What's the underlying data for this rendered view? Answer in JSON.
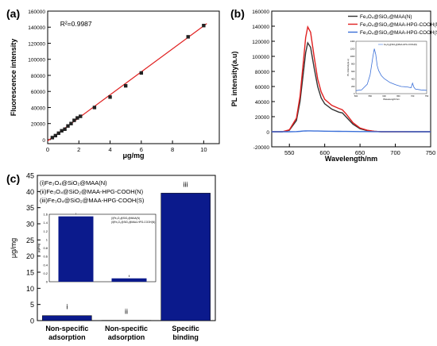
{
  "chart_data": [
    {
      "panel": "(a)",
      "type": "scatter",
      "annotation": "R²=0.9987",
      "xlabel": "μg/mg",
      "ylabel": "Fluorescence intensity",
      "xlim": [
        0,
        11
      ],
      "ylim": [
        -5000,
        160000
      ],
      "xticks": [
        0,
        2,
        4,
        6,
        8,
        10
      ],
      "yticks": [
        0,
        20000,
        40000,
        60000,
        80000,
        100000,
        120000,
        140000,
        160000
      ],
      "points": [
        {
          "x": 0.3,
          "y": 2500
        },
        {
          "x": 0.5,
          "y": 5000
        },
        {
          "x": 0.7,
          "y": 8000
        },
        {
          "x": 0.9,
          "y": 11000
        },
        {
          "x": 1.1,
          "y": 13000
        },
        {
          "x": 1.3,
          "y": 17000
        },
        {
          "x": 1.5,
          "y": 20000
        },
        {
          "x": 1.7,
          "y": 24000
        },
        {
          "x": 1.9,
          "y": 27000
        },
        {
          "x": 2.1,
          "y": 29000
        },
        {
          "x": 3.0,
          "y": 40000
        },
        {
          "x": 4.0,
          "y": 53000
        },
        {
          "x": 5.0,
          "y": 67000
        },
        {
          "x": 6.0,
          "y": 83000
        },
        {
          "x": 9.0,
          "y": 128000
        },
        {
          "x": 10.0,
          "y": 142000
        }
      ],
      "fit_line": {
        "x": [
          0,
          10.2
        ],
        "y": [
          -1500,
          144500
        ],
        "color": "#e02020"
      },
      "marker_color": "#222222"
    },
    {
      "panel": "(b)",
      "type": "line",
      "xlabel": "Wavelength/nm",
      "ylabel": "PL intensity(a.u)",
      "xlim": [
        525,
        750
      ],
      "ylim": [
        -20000,
        160000
      ],
      "xticks": [
        550,
        600,
        650,
        700,
        750
      ],
      "yticks": [
        -20000,
        0,
        20000,
        40000,
        60000,
        80000,
        100000,
        120000,
        140000,
        160000
      ],
      "x": [
        525,
        540,
        550,
        560,
        565,
        570,
        573,
        576,
        580,
        585,
        590,
        595,
        600,
        610,
        620,
        625,
        630,
        640,
        650,
        660,
        670,
        680,
        700,
        725,
        750
      ],
      "series": [
        {
          "name": "Fe₃O₄@SiO₂@MAA(N)",
          "color": "#333333",
          "values": [
            0,
            0,
            2000,
            15000,
            40000,
            80000,
            105000,
            118000,
            112000,
            85000,
            60000,
            45000,
            37000,
            30000,
            26000,
            25000,
            20000,
            10000,
            4000,
            1500,
            500,
            0,
            0,
            0,
            0
          ]
        },
        {
          "name": "Fe₃O₄@SiO₂@MAA-HPG-COOH(N)",
          "color": "#e02020",
          "values": [
            0,
            0,
            2500,
            18000,
            47000,
            95000,
            125000,
            139000,
            132000,
            100000,
            70000,
            53000,
            43000,
            35000,
            31000,
            29000,
            24000,
            12000,
            5000,
            2000,
            600,
            0,
            0,
            0,
            0
          ]
        },
        {
          "name": "Fe₃O₄@SiO₂@MAA-HPG-COOH(S)",
          "color": "#3a6fd8",
          "values": [
            0,
            0,
            0,
            200,
            500,
            900,
            1100,
            1200,
            1150,
            1000,
            900,
            800,
            700,
            600,
            500,
            450,
            400,
            300,
            250,
            200,
            150,
            100,
            100,
            50,
            0
          ]
        }
      ],
      "legend": "top-right",
      "inset": {
        "ylabel": "PL intensity(a.u)",
        "xlabel": "Wavelength/nm",
        "legend_entry": "Fe₃O₄@SiO₂@MAA-HPG-COOH(S)",
        "color": "#3a6fd8",
        "xlim": [
          500,
          750
        ],
        "ylim": [
          0,
          1400
        ],
        "xticks": [
          500,
          550,
          600,
          650,
          700,
          750
        ],
        "yticks": [
          0,
          200,
          400,
          600,
          800,
          1000,
          1200,
          1400
        ],
        "x": [
          500,
          520,
          540,
          550,
          560,
          565,
          570,
          575,
          580,
          590,
          600,
          620,
          640,
          660,
          680,
          695,
          700,
          705,
          710,
          730,
          750
        ],
        "values": [
          80,
          100,
          250,
          500,
          1000,
          1200,
          1050,
          750,
          620,
          480,
          400,
          300,
          240,
          190,
          180,
          160,
          280,
          170,
          120,
          100,
          90
        ]
      }
    },
    {
      "panel": "(c)",
      "type": "bar",
      "ylabel": "μg/mg",
      "ylim": [
        0,
        45
      ],
      "yticks": [
        0,
        5,
        10,
        15,
        20,
        25,
        30,
        35,
        40,
        45
      ],
      "categories": [
        "Non-specific adsorption",
        "Non-specific adsorption",
        "Specific binding"
      ],
      "values": [
        1.55,
        0.08,
        39.5
      ],
      "bar_labels": [
        "i",
        "ii",
        "iii"
      ],
      "bar_color": "#0b1a8c",
      "legend_lines": [
        "(i)Fe₃O₄@SiO₂@MAA(N)",
        "(ii)Fe₃O₄@SiO₂@MAA-HPG-COOH(N)",
        "(iii)Fe₃O₄@SiO₂@MAA-HPG-COOH(S)"
      ],
      "inset": {
        "ylabel": "μg/mg",
        "ylim": [
          0,
          1.6
        ],
        "yticks": [
          0,
          0.2,
          0.4,
          0.6,
          0.8,
          1.0,
          1.2,
          1.4,
          1.6
        ],
        "values": [
          1.55,
          0.08
        ],
        "bar_labels": [
          "i",
          "ii"
        ],
        "legend_lines": [
          "(i)Fe₃O₄@SiO₂@MAA(N)",
          "(ii)Fe₃O₄@SiO₂@MAA-HPG-COOH(N)"
        ]
      }
    }
  ]
}
